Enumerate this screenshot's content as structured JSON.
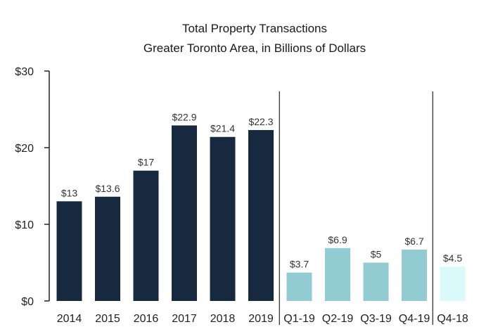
{
  "chart_data": {
    "type": "bar",
    "title": "Total Property Transactions",
    "subtitle": "Greater Toronto Area, in Billions of Dollars",
    "xlabel": "",
    "ylabel": "",
    "ylim": [
      0,
      30
    ],
    "y_ticks": [
      "$0",
      "$10",
      "$20",
      "$30"
    ],
    "y_tick_values": [
      0,
      10,
      20,
      30
    ],
    "grid": false,
    "categories": [
      "2014",
      "2015",
      "2016",
      "2017",
      "2018",
      "2019",
      "Q1-19",
      "Q2-19",
      "Q3-19",
      "Q4-19",
      "Q4-18"
    ],
    "values": [
      13,
      13.6,
      17,
      22.9,
      21.4,
      22.3,
      3.7,
      6.9,
      5,
      6.7,
      4.5
    ],
    "data_labels": [
      "$13",
      "$13.6",
      "$17",
      "$22.9",
      "$21.4",
      "$22.3",
      "$3.7",
      "$6.9",
      "$5",
      "$6.7",
      "$4.5"
    ],
    "groups": [
      {
        "indices": [
          0,
          1,
          2,
          3,
          4,
          5
        ],
        "color": "#17293f"
      },
      {
        "indices": [
          6,
          7,
          8,
          9
        ],
        "color": "#93cbd3"
      },
      {
        "indices": [
          10
        ],
        "color": "#d9f9fb"
      }
    ]
  }
}
